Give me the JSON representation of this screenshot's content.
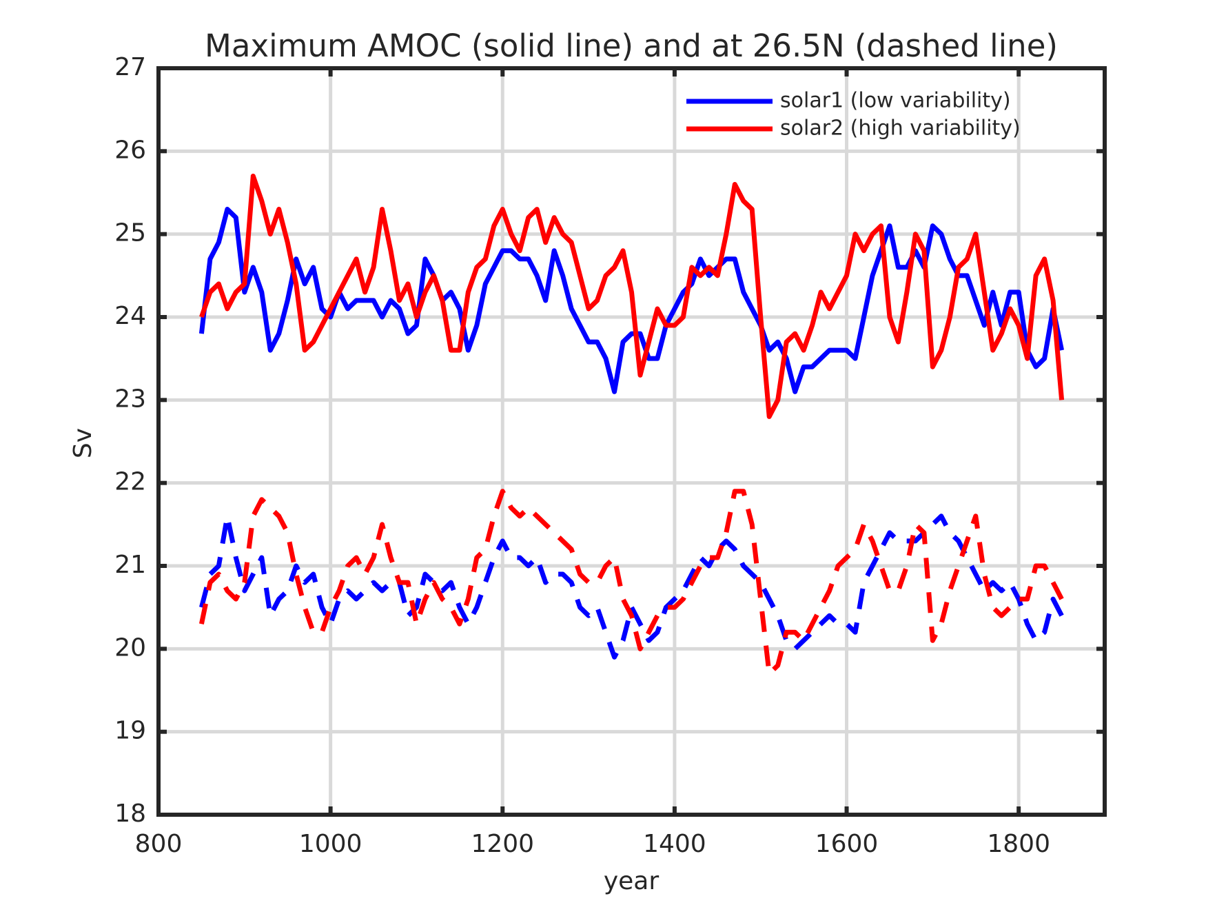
{
  "chart_data": {
    "type": "line",
    "title": "Maximum AMOC (solid line) and at 26.5N (dashed line)",
    "xlabel": "year",
    "ylabel": "Sv",
    "x": [
      850,
      860,
      870,
      880,
      890,
      900,
      910,
      920,
      930,
      940,
      950,
      960,
      970,
      980,
      990,
      1000,
      1010,
      1020,
      1030,
      1040,
      1050,
      1060,
      1070,
      1080,
      1090,
      1100,
      1110,
      1120,
      1130,
      1140,
      1150,
      1160,
      1170,
      1180,
      1190,
      1200,
      1210,
      1220,
      1230,
      1240,
      1250,
      1260,
      1270,
      1280,
      1290,
      1300,
      1310,
      1320,
      1330,
      1340,
      1350,
      1360,
      1370,
      1380,
      1390,
      1400,
      1410,
      1420,
      1430,
      1440,
      1450,
      1460,
      1470,
      1480,
      1490,
      1500,
      1510,
      1520,
      1530,
      1540,
      1550,
      1560,
      1570,
      1580,
      1590,
      1600,
      1610,
      1620,
      1630,
      1640,
      1650,
      1660,
      1670,
      1680,
      1690,
      1700,
      1710,
      1720,
      1730,
      1740,
      1750,
      1760,
      1770,
      1780,
      1790,
      1800,
      1810,
      1820,
      1830,
      1840,
      1850
    ],
    "series": [
      {
        "name": "solar1 (low variability)",
        "color": "#0000ff",
        "style": "solid",
        "values": [
          23.8,
          24.7,
          24.9,
          25.3,
          25.2,
          24.3,
          24.6,
          24.3,
          23.6,
          23.8,
          24.2,
          24.7,
          24.4,
          24.6,
          24.1,
          24.0,
          24.3,
          24.1,
          24.2,
          24.2,
          24.2,
          24.0,
          24.2,
          24.1,
          23.8,
          23.9,
          24.7,
          24.5,
          24.2,
          24.3,
          24.1,
          23.6,
          23.9,
          24.4,
          24.6,
          24.8,
          24.8,
          24.7,
          24.7,
          24.5,
          24.2,
          24.8,
          24.5,
          24.1,
          23.9,
          23.7,
          23.7,
          23.5,
          23.1,
          23.7,
          23.8,
          23.8,
          23.5,
          23.5,
          23.9,
          24.1,
          24.3,
          24.4,
          24.7,
          24.5,
          24.6,
          24.7,
          24.7,
          24.3,
          24.1,
          23.9,
          23.6,
          23.7,
          23.5,
          23.1,
          23.4,
          23.4,
          23.5,
          23.6,
          23.6,
          23.6,
          23.5,
          24.0,
          24.5,
          24.8,
          25.1,
          24.6,
          24.6,
          24.8,
          24.6,
          25.1,
          25.0,
          24.7,
          24.5,
          24.5,
          24.2,
          23.9,
          24.3,
          23.9,
          24.3,
          24.3,
          23.6,
          23.4,
          23.5,
          24.1,
          23.6
        ]
      },
      {
        "name": "solar2 (high variability)",
        "color": "#ff0000",
        "style": "solid",
        "values": [
          24.0,
          24.3,
          24.4,
          24.1,
          24.3,
          24.4,
          25.7,
          25.4,
          25.0,
          25.3,
          24.9,
          24.4,
          23.6,
          23.7,
          23.9,
          24.1,
          24.3,
          24.5,
          24.7,
          24.3,
          24.6,
          25.3,
          24.8,
          24.2,
          24.4,
          24.0,
          24.3,
          24.5,
          24.2,
          23.6,
          23.6,
          24.3,
          24.6,
          24.7,
          25.1,
          25.3,
          25.0,
          24.8,
          25.2,
          25.3,
          24.9,
          25.2,
          25.0,
          24.9,
          24.5,
          24.1,
          24.2,
          24.5,
          24.6,
          24.8,
          24.3,
          23.3,
          23.7,
          24.1,
          23.9,
          23.9,
          24.0,
          24.6,
          24.5,
          24.6,
          24.5,
          25.0,
          25.6,
          25.4,
          25.3,
          24.0,
          22.8,
          23.0,
          23.7,
          23.8,
          23.6,
          23.9,
          24.3,
          24.1,
          24.3,
          24.5,
          25.0,
          24.8,
          25.0,
          25.1,
          24.0,
          23.7,
          24.3,
          25.0,
          24.8,
          23.4,
          23.6,
          24.0,
          24.6,
          24.7,
          25.0,
          24.3,
          23.6,
          23.8,
          24.1,
          23.9,
          23.5,
          24.5,
          24.7,
          24.2,
          23.0
        ]
      },
      {
        "color": "#0000ff",
        "style": "dashed",
        "values": [
          20.5,
          20.9,
          21.0,
          21.6,
          21.1,
          20.7,
          20.9,
          21.1,
          20.4,
          20.6,
          20.7,
          21.0,
          20.8,
          20.9,
          20.5,
          20.3,
          20.6,
          20.7,
          20.6,
          20.7,
          20.8,
          20.7,
          20.8,
          20.8,
          20.4,
          20.5,
          20.9,
          20.8,
          20.7,
          20.8,
          20.5,
          20.3,
          20.5,
          20.8,
          21.1,
          21.3,
          21.1,
          21.1,
          21.0,
          21.1,
          20.8,
          20.9,
          20.9,
          20.8,
          20.5,
          20.4,
          20.5,
          20.2,
          19.9,
          20.1,
          20.5,
          20.3,
          20.1,
          20.2,
          20.5,
          20.6,
          20.7,
          20.9,
          21.1,
          21.0,
          21.2,
          21.3,
          21.2,
          21.0,
          20.9,
          20.8,
          20.6,
          20.4,
          20.1,
          20.0,
          20.1,
          20.2,
          20.3,
          20.4,
          20.3,
          20.3,
          20.2,
          20.8,
          21.0,
          21.2,
          21.4,
          21.3,
          21.3,
          21.3,
          21.4,
          21.5,
          21.6,
          21.4,
          21.3,
          21.1,
          20.9,
          20.7,
          20.8,
          20.7,
          20.8,
          20.6,
          20.3,
          20.1,
          20.2,
          20.6,
          20.4
        ]
      },
      {
        "color": "#ff0000",
        "style": "dashed",
        "values": [
          20.3,
          20.8,
          20.9,
          20.7,
          20.6,
          20.8,
          21.6,
          21.8,
          21.7,
          21.6,
          21.4,
          20.9,
          20.5,
          20.2,
          20.2,
          20.5,
          20.7,
          21.0,
          21.1,
          20.9,
          21.1,
          21.5,
          21.1,
          20.8,
          20.8,
          20.3,
          20.6,
          20.8,
          20.6,
          20.5,
          20.3,
          20.6,
          21.1,
          21.2,
          21.6,
          21.9,
          21.7,
          21.6,
          21.7,
          21.6,
          21.5,
          21.4,
          21.3,
          21.2,
          20.9,
          20.8,
          20.8,
          21.0,
          21.1,
          20.6,
          20.4,
          20.0,
          20.2,
          20.4,
          20.5,
          20.5,
          20.6,
          20.8,
          21.0,
          21.1,
          21.1,
          21.4,
          21.9,
          21.9,
          21.5,
          20.6,
          19.7,
          19.8,
          20.2,
          20.2,
          20.1,
          20.3,
          20.5,
          20.7,
          21.0,
          21.1,
          21.2,
          21.5,
          21.3,
          21.0,
          20.7,
          20.7,
          21.0,
          21.5,
          21.4,
          20.1,
          20.3,
          20.7,
          21.0,
          21.3,
          21.6,
          20.9,
          20.5,
          20.4,
          20.5,
          20.6,
          20.6,
          21.0,
          21.0,
          20.8,
          20.6
        ]
      }
    ],
    "xlim": [
      800,
      1900
    ],
    "xticks": [
      800,
      1000,
      1200,
      1400,
      1600,
      1800
    ],
    "ylim": [
      18,
      27
    ],
    "yticks": [
      18,
      19,
      20,
      21,
      22,
      23,
      24,
      25,
      26,
      27
    ],
    "grid": true,
    "legend": "upper right"
  }
}
